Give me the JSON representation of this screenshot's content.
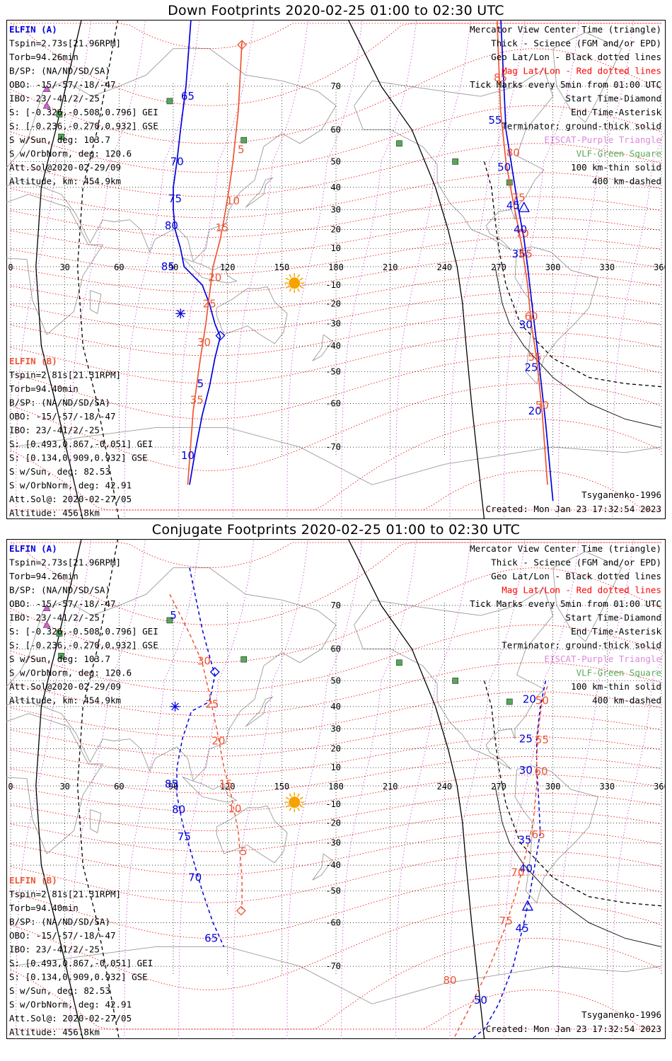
{
  "panels": [
    {
      "title": "Down Footprints 2020-02-25 01:00 to 02:30 UTC",
      "time_labels": {
        "a": [
          {
            "lon": 98.0,
            "lat": 68.0,
            "t": "65"
          },
          {
            "lon": 92.0,
            "lat": 50.0,
            "t": "70"
          },
          {
            "lon": 91.0,
            "lat": 35.0,
            "t": "75"
          },
          {
            "lon": 89.0,
            "lat": 22.0,
            "t": "80"
          },
          {
            "lon": 87.0,
            "lat": 0.0,
            "t": "85"
          },
          {
            "lon": 105.0,
            "lat": -54.0,
            "t": "5"
          },
          {
            "lon": 98.0,
            "lat": -71.5,
            "t": "10"
          },
          {
            "lon": 268.0,
            "lat": 62.5,
            "t": "55"
          },
          {
            "lon": 273.0,
            "lat": 48.0,
            "t": "50"
          },
          {
            "lon": 278.0,
            "lat": 32.0,
            "t": "45"
          },
          {
            "lon": 282.0,
            "lat": 20.0,
            "t": "40"
          },
          {
            "lon": 281.0,
            "lat": 7.0,
            "t": "35"
          },
          {
            "lon": 285.0,
            "lat": -30.5,
            "t": "30"
          },
          {
            "lon": 288.0,
            "lat": -48.5,
            "t": "25"
          },
          {
            "lon": 290.0,
            "lat": -62.0,
            "t": "20"
          }
        ],
        "b": [
          {
            "lon": 127.5,
            "lat": 54.0,
            "t": "5"
          },
          {
            "lon": 123.0,
            "lat": 34.0,
            "t": "10"
          },
          {
            "lon": 117.0,
            "lat": 21.0,
            "t": "15"
          },
          {
            "lon": 113.0,
            "lat": -6.0,
            "t": "20"
          },
          {
            "lon": 110.0,
            "lat": -20.0,
            "t": "25"
          },
          {
            "lon": 107.0,
            "lat": -38.5,
            "t": "30"
          },
          {
            "lon": 103.0,
            "lat": -59.0,
            "t": "35"
          },
          {
            "lon": 271.0,
            "lat": 71.5,
            "t": "85"
          },
          {
            "lon": 278.0,
            "lat": 53.0,
            "t": "80"
          },
          {
            "lon": 281.0,
            "lat": 35.5,
            "t": "75"
          },
          {
            "lon": 283.0,
            "lat": 18.0,
            "t": "70"
          },
          {
            "lon": 285.0,
            "lat": 7.0,
            "t": "65"
          },
          {
            "lon": 288.0,
            "lat": -26.5,
            "t": "60"
          },
          {
            "lon": 290.0,
            "lat": -44.5,
            "t": "55"
          },
          {
            "lon": 294.0,
            "lat": -60.5,
            "t": "50"
          }
        ]
      },
      "start_marks": {
        "a": {
          "lon": 116.0,
          "lat": -35.5
        },
        "b": {
          "lon": 128.0,
          "lat": 76.5
        }
      },
      "end_marks": {
        "a": {
          "lon": 94.0,
          "lat": -25.0
        }
      },
      "center_triangle": {
        "lon": 284.0,
        "lat": 31.0
      }
    },
    {
      "title": "Conjugate Footprints 2020-02-25 01:00 to 02:30 UTC",
      "time_labels": {
        "a": [
          {
            "lon": 90.0,
            "lat": 68.0,
            "t": "5"
          },
          {
            "lon": 89.0,
            "lat": 1.0,
            "t": "85"
          },
          {
            "lon": 93.0,
            "lat": -13.0,
            "t": "80"
          },
          {
            "lon": 96.0,
            "lat": -27.0,
            "t": "75"
          },
          {
            "lon": 102.0,
            "lat": -45.0,
            "t": "70"
          },
          {
            "lon": 111.0,
            "lat": -64.0,
            "t": "65"
          },
          {
            "lon": 287.0,
            "lat": 43.0,
            "t": "20"
          },
          {
            "lon": 285.0,
            "lat": 25.0,
            "t": "25"
          },
          {
            "lon": 285.0,
            "lat": 8.5,
            "t": "30"
          },
          {
            "lon": 284.5,
            "lat": -28.5,
            "t": "35"
          },
          {
            "lon": 285.0,
            "lat": -41.5,
            "t": "40"
          },
          {
            "lon": 283.0,
            "lat": -61.5,
            "t": "45"
          },
          {
            "lon": 260.0,
            "lat": -75.5,
            "t": "50"
          }
        ],
        "b": [
          {
            "lon": 107.0,
            "lat": 56.5,
            "t": "30"
          },
          {
            "lon": 111.5,
            "lat": 41.0,
            "t": "25"
          },
          {
            "lon": 115.0,
            "lat": 24.0,
            "t": "20"
          },
          {
            "lon": 119.0,
            "lat": 1.0,
            "t": "15"
          },
          {
            "lon": 124.0,
            "lat": -12.5,
            "t": "10"
          },
          {
            "lon": 129.0,
            "lat": -34.0,
            "t": "5"
          },
          {
            "lon": 294.0,
            "lat": 42.5,
            "t": "50"
          },
          {
            "lon": 294.0,
            "lat": 24.5,
            "t": "55"
          },
          {
            "lon": 293.5,
            "lat": 8.0,
            "t": "60"
          },
          {
            "lon": 292.0,
            "lat": -26.0,
            "t": "65"
          },
          {
            "lon": 280.5,
            "lat": -43.0,
            "t": "70"
          },
          {
            "lon": 274.0,
            "lat": -59.5,
            "t": "75"
          },
          {
            "lon": 243.0,
            "lat": -72.5,
            "t": "80"
          }
        ]
      },
      "start_marks": {
        "a": {
          "lon": 113.0,
          "lat": 53.0
        },
        "b": {
          "lon": 127.5,
          "lat": -56.5
        }
      },
      "end_marks": {
        "a": {
          "lon": 91.0,
          "lat": 40.0
        }
      },
      "center_triangle": {
        "lon": 286.0,
        "lat": -55.0
      }
    }
  ],
  "left_block_a": {
    "header": "ELFIN (A)",
    "lines": [
      "Tspin=2.73s[21.96RPM]",
      "Torb=94.26min",
      "B/SP: (NA/ND/SD/SA)",
      "OBO: -15/-57/-18/-47",
      "IBO: 23/-41/2/-25",
      "S: [-0.326,-0.508,0.796] GEI",
      "S: [-0.236,-0.270,0.932] GSE",
      "S w/Sun, deg: 103.7",
      "S w/OrbNorm, deg: 120.6",
      "Att.Sol@2020-02-29/09",
      "Altitude, km: 454.9km"
    ]
  },
  "left_block_b": {
    "header": "ELFIN (B)",
    "lines": [
      "Tspin=2.81s[21.31RPM]",
      "Torb=94.40min",
      "B/SP: (NA/ND/SD/SA)",
      "OBO: -15/-57/-18/-47",
      "IBO: 23/-41/2/-25",
      "S: [0.493,0.867,-0.051] GEI",
      "S: [0.134,0.909,0.932] GSE",
      "S w/Sun, deg: 82.53",
      "S w/OrbNorm, deg: 42.91",
      "Att.Sol@: 2020-02-27/05",
      "Altitude: 456.8km"
    ]
  },
  "right_legend": [
    {
      "t": "Mercator View Center Time (triangle)",
      "c": "#000000"
    },
    {
      "t": "Thick - Science (FGM and/or EPD)",
      "c": "#000000"
    },
    {
      "t": "Geo Lat/Lon - Black dotted lines",
      "c": "#000000"
    },
    {
      "t": "Mag Lat/Lon - Red dotted lines",
      "c": "#ff0000"
    },
    {
      "t": "Tick Marks every 5min from 01:00 UTC",
      "c": "#000000"
    },
    {
      "t": "Start Time-Diamond",
      "c": "#000000"
    },
    {
      "t": "End Time-Asterisk",
      "c": "#000000"
    },
    {
      "t": "Terminator: ground-thick solid",
      "c": "#000000"
    },
    {
      "t": "EISCAT-Purple Triangle",
      "c": "#dd88dd"
    },
    {
      "t": "VLF-Green Square",
      "c": "#55aa55"
    },
    {
      "t": "100 km-thin solid",
      "c": "#000000"
    },
    {
      "t": "400 km-dashed",
      "c": "#000000"
    }
  ],
  "model_label": "Tsyganenko-1996",
  "created_label": "Created: Mon Jan 23 17:32:54 2023",
  "lon_ticks": [
    "0",
    "30",
    "60",
    "90",
    "120",
    "150",
    "180",
    "210",
    "240",
    "270",
    "300",
    "330",
    "360"
  ],
  "lat_ticks": [
    {
      "v": 70,
      "t": "70"
    },
    {
      "v": 60,
      "t": "60"
    },
    {
      "v": 50,
      "t": "50"
    },
    {
      "v": 40,
      "t": "40"
    },
    {
      "v": 30,
      "t": "30"
    },
    {
      "v": 20,
      "t": "20"
    },
    {
      "v": 10,
      "t": "10"
    },
    {
      "v": -10,
      "t": "-10"
    },
    {
      "v": -20,
      "t": "-20"
    },
    {
      "v": -30,
      "t": "-30"
    },
    {
      "v": -40,
      "t": "-40"
    },
    {
      "v": -50,
      "t": "-50"
    },
    {
      "v": -60,
      "t": "-60"
    },
    {
      "v": -70,
      "t": "-70"
    }
  ],
  "vlf_stations": [
    {
      "lon": 88,
      "lat": 67
    },
    {
      "lon": 27,
      "lat": 64
    },
    {
      "lon": 28,
      "lat": 58
    },
    {
      "lon": 129,
      "lat": 57
    },
    {
      "lon": 215,
      "lat": 56
    },
    {
      "lon": 246,
      "lat": 50
    },
    {
      "lon": 276,
      "lat": 42
    }
  ],
  "eiscat_stations": [
    {
      "lon": 20,
      "lat": 69.5
    },
    {
      "lon": 20,
      "lat": 66
    }
  ],
  "subsolar_point": {
    "lon": 157,
    "lat": -9
  },
  "colors": {
    "elfin_a": "#0000dd",
    "elfin_b": "#ee5533",
    "sun": "#f5a300",
    "geo_grid": "#000000",
    "mag_grid": "#ee0000",
    "mag_merid": "#cc44cc",
    "vlf": "#55aa55",
    "eiscat": "#cc66cc"
  },
  "chart_data": [
    {
      "type": "scatter",
      "title": "Down Footprints 2020-02-25 01:00 to 02:30 UTC",
      "projection": "mercator",
      "xlim": [
        0,
        360
      ],
      "ylim": [
        -80,
        80
      ],
      "series": [
        {
          "name": "ELFIN (A)",
          "x": [
            100,
            97,
            94,
            92,
            90,
            90,
            91,
            94,
            96,
            106,
            110,
            113,
            116,
            113,
            110,
            106,
            102,
            99
          ],
          "y": [
            80,
            70,
            60,
            50,
            40,
            30,
            20,
            10,
            0,
            -10,
            -20,
            -30,
            -36,
            -45,
            -55,
            -63,
            -71,
            -76
          ]
        },
        {
          "name": "ELFIN (A) 2",
          "x": [
            271,
            274,
            278,
            281,
            284,
            286,
            289,
            292,
            296,
            300
          ],
          "y": [
            80,
            60,
            45,
            30,
            15,
            0,
            -25,
            -45,
            -65,
            -78
          ]
        },
        {
          "name": "ELFIN (B)",
          "x": [
            128,
            126,
            123,
            121,
            118,
            116,
            112,
            110,
            108,
            105,
            101,
            98
          ],
          "y": [
            77,
            65,
            50,
            40,
            25,
            15,
            0,
            -15,
            -30,
            -45,
            -62,
            -76
          ]
        },
        {
          "name": "ELFIN (B) 2",
          "x": [
            269,
            271,
            274,
            277,
            280,
            283,
            286,
            288,
            291,
            294,
            297
          ],
          "y": [
            80,
            65,
            50,
            38,
            25,
            10,
            -10,
            -30,
            -45,
            -62,
            -76
          ]
        }
      ]
    },
    {
      "type": "scatter",
      "title": "Conjugate Footprints 2020-02-25 01:00 to 02:30 UTC",
      "projection": "mercator",
      "xlim": [
        0,
        360
      ],
      "ylim": [
        -80,
        80
      ],
      "series": [
        {
          "name": "ELFIN (A)",
          "x": [
            99,
            102,
            106,
            110,
            113,
            110,
            105,
            100,
            95,
            92,
            92,
            95,
            100,
            106,
            112,
            118
          ],
          "y": [
            76,
            72,
            65,
            58,
            52,
            42,
            40,
            38,
            25,
            10,
            -5,
            -20,
            -35,
            -50,
            -60,
            -66
          ]
        },
        {
          "name": "ELFIN (A) 2",
          "x": [
            296,
            293,
            291,
            291,
            292,
            293,
            290,
            287,
            284,
            278,
            270,
            262,
            255
          ],
          "y": [
            50,
            40,
            25,
            10,
            -5,
            -25,
            -40,
            -52,
            -60,
            -70,
            -76,
            -79,
            -80
          ]
        },
        {
          "name": "ELFIN (B)",
          "x": [
            88,
            94,
            100,
            106,
            110,
            114,
            118,
            122,
            126,
            128,
            128
          ],
          "y": [
            72,
            68,
            63,
            56,
            45,
            30,
            10,
            -5,
            -25,
            -45,
            -56
          ]
        },
        {
          "name": "ELFIN (B) 2",
          "x": [
            297,
            294,
            292,
            291,
            291,
            289,
            285,
            280,
            273,
            265,
            255,
            245
          ],
          "y": [
            48,
            42,
            30,
            15,
            0,
            -20,
            -35,
            -50,
            -62,
            -70,
            -76,
            -80
          ]
        }
      ]
    }
  ]
}
